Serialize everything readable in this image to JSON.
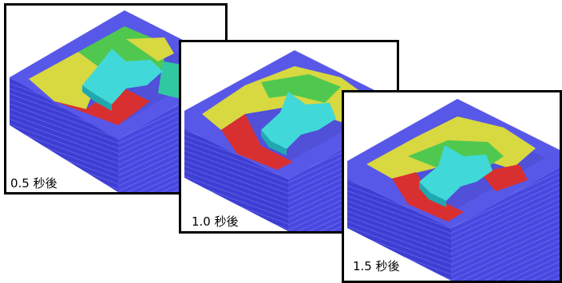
{
  "panels": [
    {
      "label": "0.5 秒後"
    },
    {
      "label": "1.0 秒後"
    },
    {
      "label": "1.5 秒後"
    }
  ],
  "colors": {
    "container": "#4848e0",
    "container_dark": "#3a3ac8",
    "container_line": "#7070f0",
    "cyan_block": "#40d8d8",
    "cyan_dark": "#20a8b0",
    "yellow": "#d8d840",
    "green": "#50c850",
    "red": "#d83030",
    "teal": "#30c8a0"
  }
}
